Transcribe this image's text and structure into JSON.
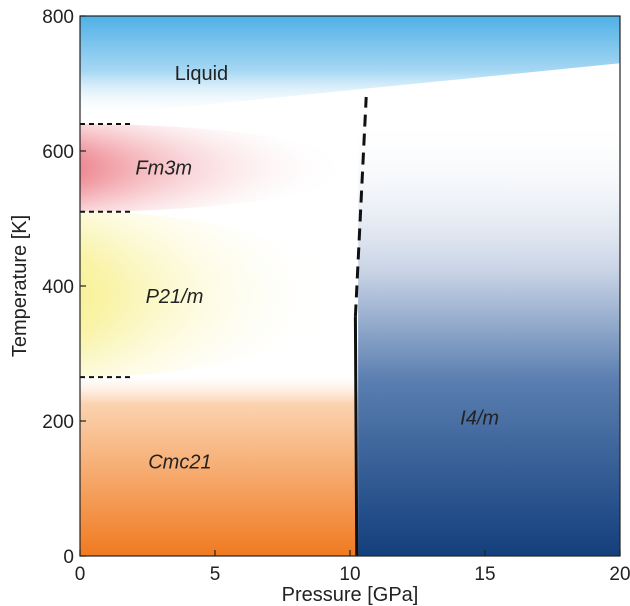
{
  "chart_data": {
    "type": "area",
    "title": "",
    "xlabel": "Pressure [GPa]",
    "ylabel": "Temperature [K]",
    "xlim": [
      0,
      20
    ],
    "ylim": [
      0,
      800
    ],
    "xticks": [
      "0",
      "5",
      "10",
      "15",
      "20"
    ],
    "yticks": [
      "0",
      "200",
      "400",
      "600",
      "800"
    ],
    "grid": false,
    "regions": [
      {
        "label": "Liquid",
        "italic": false,
        "x": 4.5,
        "y": 705,
        "T_lower_at_0GPa": 650,
        "T_lower_at_20GPa": 730,
        "color": "#5fb6e8"
      },
      {
        "label": "Fm3m",
        "italic": true,
        "x": 3.1,
        "y": 565,
        "T_min": 510,
        "T_max": 640,
        "P_max": 10,
        "color": "#dd2233"
      },
      {
        "label": "P21/m",
        "italic": true,
        "x": 3.5,
        "y": 375,
        "T_min": 265,
        "T_max": 510,
        "P_max": 9.5,
        "color": "#f5eb3c"
      },
      {
        "label": "Cmc21",
        "italic": true,
        "x": 3.7,
        "y": 130,
        "T_min": 0,
        "T_max": 265,
        "P_max": 10.3,
        "color": "#f07a20"
      },
      {
        "label": "I4/m",
        "italic": true,
        "x": 14.8,
        "y": 195,
        "T_min": 0,
        "T_max": 650,
        "P_min": 10.3,
        "color": "#16427e"
      }
    ],
    "boundaries": [
      {
        "name": "I4/m boundary (solid)",
        "style": "solid",
        "points": [
          [
            10.25,
            0
          ],
          [
            10.2,
            355
          ]
        ]
      },
      {
        "name": "I4/m boundary (dashed)",
        "style": "dashed",
        "points": [
          [
            10.2,
            355
          ],
          [
            10.6,
            680
          ]
        ]
      },
      {
        "name": "Liquid–Fm3m transition",
        "style": "dashed",
        "points": [
          [
            0,
            640
          ],
          [
            2,
            640
          ]
        ]
      },
      {
        "name": "Fm3m–P21/m transition",
        "style": "dashed",
        "points": [
          [
            0,
            510
          ],
          [
            2,
            510
          ]
        ]
      },
      {
        "name": "P21/m–Cmc21 transition",
        "style": "dashed",
        "points": [
          [
            0,
            265
          ],
          [
            2,
            265
          ]
        ]
      }
    ]
  }
}
